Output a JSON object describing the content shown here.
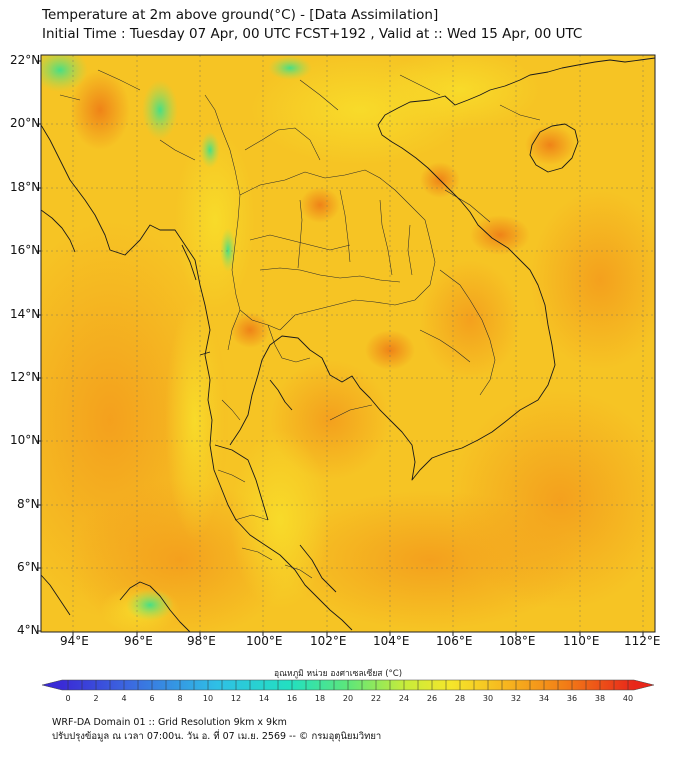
{
  "header": {
    "title_line1": "Temperature at 2m above ground(°C) - [Data Assimilation]",
    "title_line2": "Initial Time : Tuesday 07 Apr, 00 UTC FCST+192 , Valid at :: Wed 15 Apr, 00 UTC"
  },
  "map": {
    "lat_labels": [
      "22°N",
      "20°N",
      "18°N",
      "16°N",
      "14°N",
      "12°N",
      "10°N",
      "8°N",
      "6°N",
      "4°N"
    ],
    "lon_labels": [
      "94°E",
      "96°E",
      "98°E",
      "100°E",
      "102°E",
      "104°E",
      "106°E",
      "108°E",
      "110°E",
      "112°E"
    ]
  },
  "colorbar": {
    "title": "อุณหภูมิ หน่วย องศาเซลเซียส (°C)",
    "ticks": [
      "0",
      "2",
      "4",
      "6",
      "8",
      "10",
      "12",
      "14",
      "16",
      "18",
      "20",
      "22",
      "24",
      "26",
      "28",
      "30",
      "32",
      "34",
      "36",
      "38",
      "40"
    ]
  },
  "footer": {
    "line1": "WRF-DA Domain 01 :: Grid Resolution 9km x 9km",
    "line2": "ปรับปรุงข้อมูล ณ เวลา 07:00น. วัน อ. ที่ 07 เม.ย. 2569 -- © กรมอุตุนิยมวิทยา"
  }
}
